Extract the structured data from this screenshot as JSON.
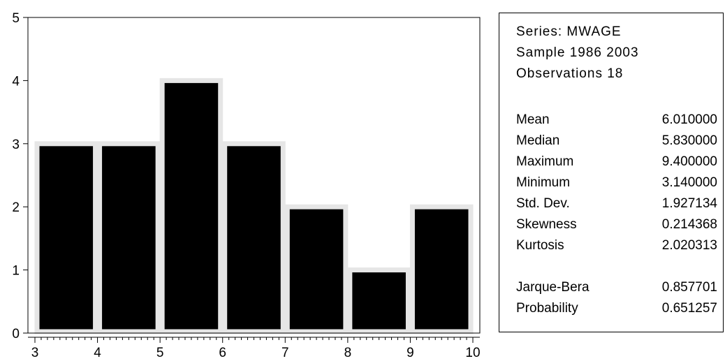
{
  "chart_data": {
    "type": "bar",
    "bins": [
      {
        "x0": 3,
        "x1": 4,
        "count": 3
      },
      {
        "x0": 4,
        "x1": 5,
        "count": 3
      },
      {
        "x0": 5,
        "x1": 6,
        "count": 4
      },
      {
        "x0": 6,
        "x1": 7,
        "count": 3
      },
      {
        "x0": 7,
        "x1": 8,
        "count": 2
      },
      {
        "x0": 8,
        "x1": 9,
        "count": 1
      },
      {
        "x0": 9,
        "x1": 10,
        "count": 2
      }
    ],
    "xlim": [
      3,
      10
    ],
    "ylim": [
      0,
      5
    ],
    "x_ticks": [
      "3",
      "4",
      "5",
      "6",
      "7",
      "8",
      "9",
      "10"
    ],
    "y_ticks": [
      "0",
      "1",
      "2",
      "3",
      "4",
      "5"
    ],
    "bar_color": "#000000",
    "bar_outline_color": "#e6e6e6",
    "grid": false,
    "legend": "none"
  },
  "stats": {
    "series_label": "Series: MWAGE",
    "sample_label": "Sample 1986 2003",
    "observations_label": "Observations 18",
    "rows": [
      {
        "label": "Mean",
        "value": "6.010000"
      },
      {
        "label": "Median",
        "value": "5.830000"
      },
      {
        "label": "Maximum",
        "value": "9.400000"
      },
      {
        "label": "Minimum",
        "value": "3.140000"
      },
      {
        "label": "Std. Dev.",
        "value": "1.927134"
      },
      {
        "label": "Skewness",
        "value": "0.214368"
      },
      {
        "label": "Kurtosis",
        "value": "2.020313"
      }
    ],
    "tests": [
      {
        "label": "Jarque-Bera",
        "value": "0.857701"
      },
      {
        "label": "Probability",
        "value": "0.651257"
      }
    ]
  }
}
